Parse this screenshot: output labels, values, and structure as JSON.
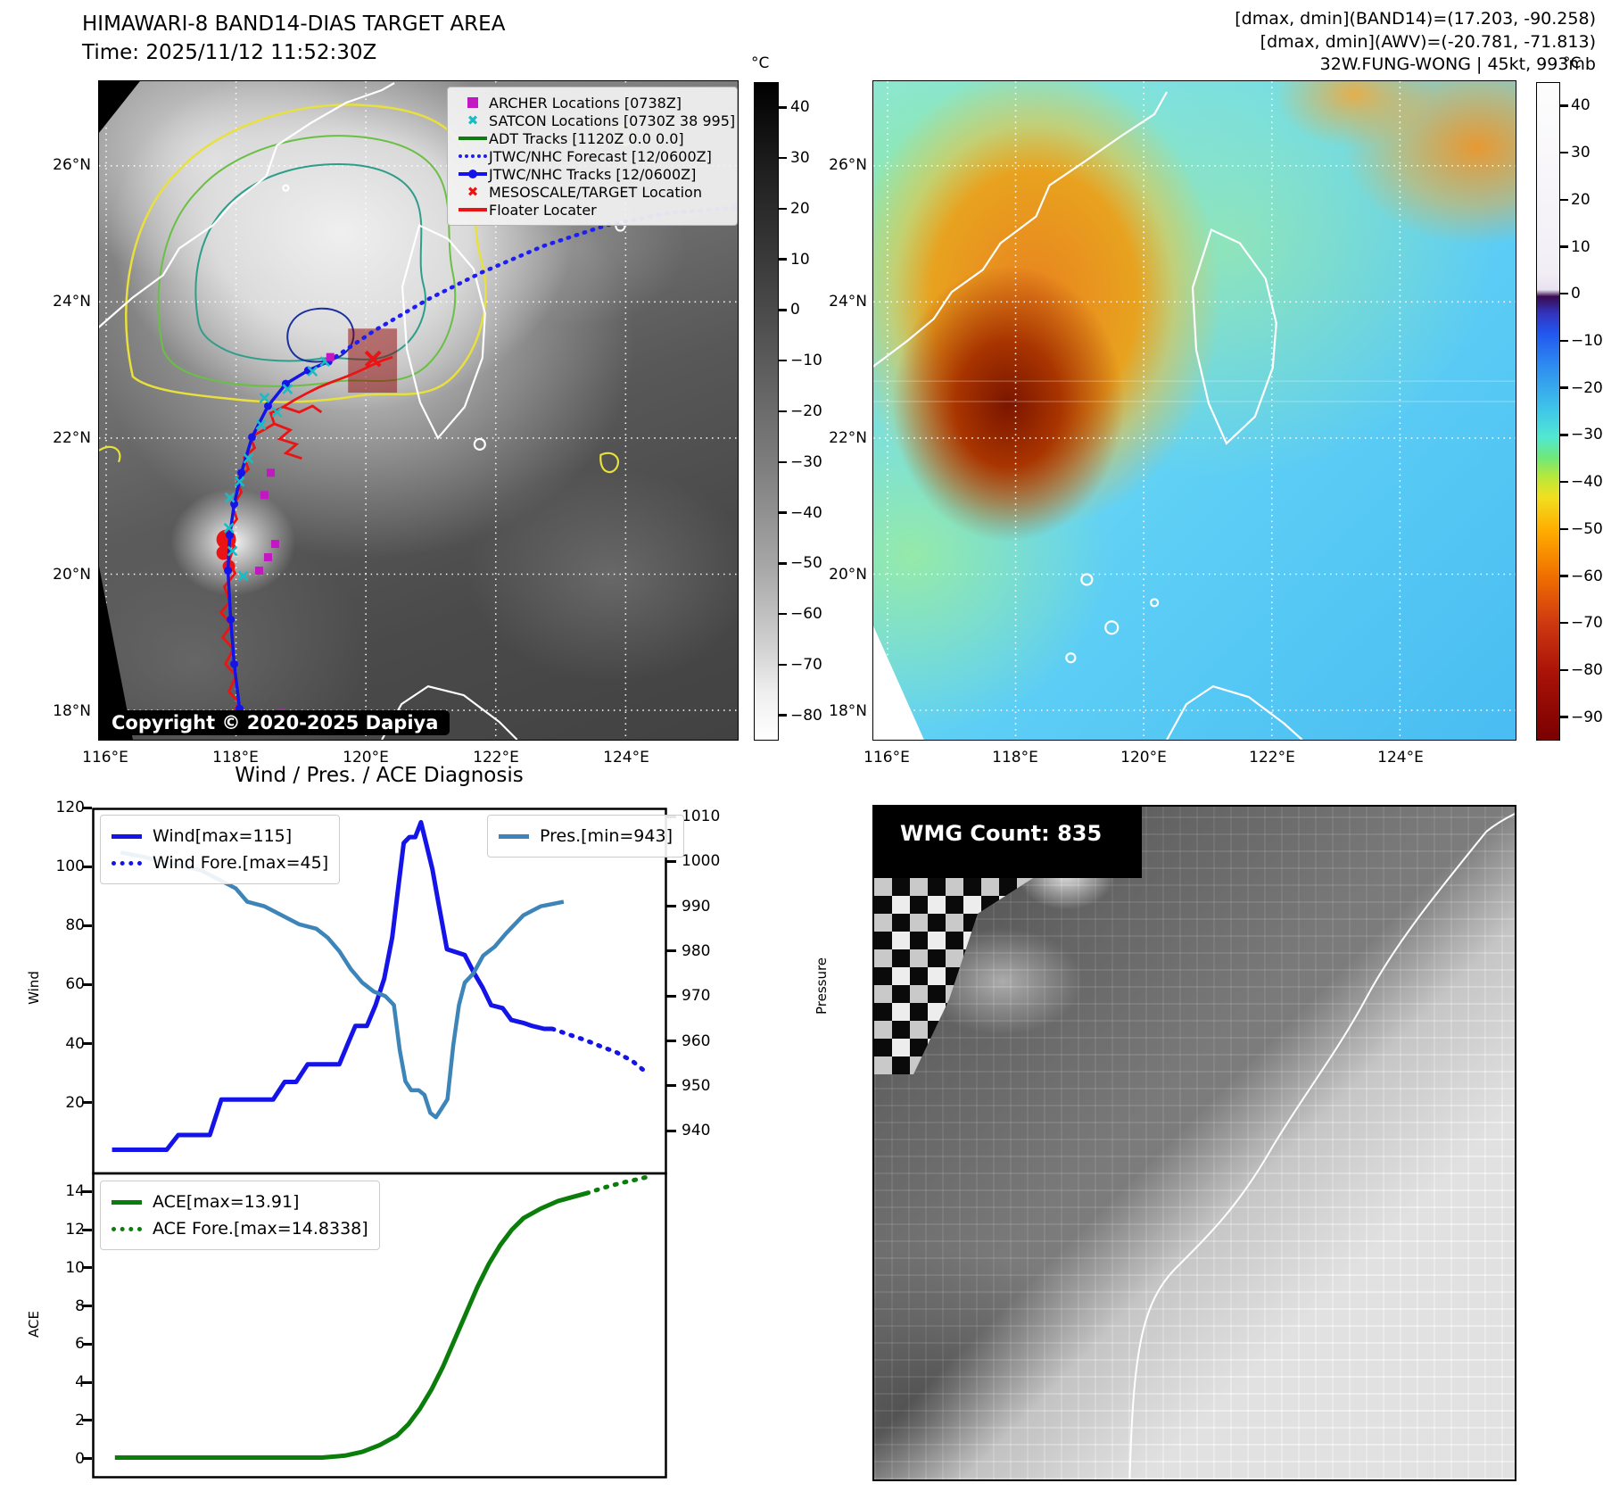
{
  "header": {
    "title": "HIMAWARI-8 BAND14-DIAS TARGET AREA",
    "time_line": "Time: 2025/11/12 11:52:30Z",
    "metrics_line1": "[dmax, dmin](BAND14)=(17.203, -90.258)",
    "metrics_line2": "[dmax, dmin](AWV)=(-20.781, -71.813)",
    "storm_line": "32W.FUNG-WONG | 45kt, 993mb"
  },
  "band14_map": {
    "lat_ticks": [
      "26°N",
      "24°N",
      "22°N",
      "20°N",
      "18°N"
    ],
    "lon_ticks": [
      "116°E",
      "118°E",
      "120°E",
      "122°E",
      "124°E"
    ],
    "legend": [
      {
        "label": "ARCHER Locations [0738Z]",
        "marker": "square",
        "color": "#c317c3"
      },
      {
        "label": "SATCON Locations [0730Z 38 995]",
        "marker": "x",
        "color": "#1abcc4"
      },
      {
        "label": "ADT Tracks [1120Z 0.0 0.0]",
        "marker": "line",
        "color": "#0e7d0e"
      },
      {
        "label": "JTWC/NHC Forecast [12/0600Z]",
        "marker": "dotted-line",
        "color": "#1e1ef0"
      },
      {
        "label": "JTWC/NHC Tracks [12/0600Z]",
        "marker": "line-dot",
        "color": "#1414e8"
      },
      {
        "label": "MESOSCALE/TARGET Location",
        "marker": "x",
        "color": "#ea1414"
      },
      {
        "label": "Floater Locater",
        "marker": "line",
        "color": "#ea1414"
      }
    ],
    "copyright": "Copyright © 2020-2025 Dapiya",
    "colorbar": {
      "unit": "°C",
      "ticks": [
        40,
        30,
        20,
        10,
        0,
        -10,
        -20,
        -30,
        -40,
        -50,
        -60,
        -70,
        -80
      ],
      "vmax": 45,
      "vmin": -85
    }
  },
  "awv_map": {
    "lat_ticks": [
      "26°N",
      "24°N",
      "22°N",
      "20°N",
      "18°N"
    ],
    "lon_ticks": [
      "116°E",
      "118°E",
      "120°E",
      "122°E",
      "124°E"
    ],
    "colorbar": {
      "unit": "°C",
      "ticks": [
        40,
        30,
        20,
        10,
        0,
        -10,
        -20,
        -30,
        -40,
        -50,
        -60,
        -70,
        -80,
        -90
      ],
      "vmax": 45,
      "vmin": -95
    }
  },
  "diagnosis": {
    "title": "Wind / Pres. / ACE Diagnosis",
    "wind_axis_label": "Wind",
    "pressure_axis_label": "Pressure",
    "ace_axis_label": "ACE",
    "wind_ticks": [
      120,
      100,
      80,
      60,
      40,
      20
    ],
    "pressure_ticks": [
      1010,
      1000,
      990,
      980,
      970,
      960,
      950,
      940
    ],
    "ace_ticks": [
      14,
      12,
      10,
      8,
      6,
      4,
      2,
      0
    ],
    "legend_wind": "Wind[max=115]",
    "legend_wind_fore": "Wind Fore.[max=45]",
    "legend_pres": "Pres.[min=943]",
    "legend_ace": "ACE[max=13.91]",
    "legend_ace_fore": "ACE Fore.[max=14.8338]"
  },
  "wmg_panel": {
    "count_label": "WMG Count: 835"
  },
  "chart_data": [
    {
      "type": "line",
      "title": "Wind / Pres. / ACE Diagnosis",
      "panel": "wind-pressure",
      "xlabel": "",
      "ylabel_left": "Wind",
      "ylabel_right": "Pressure",
      "ylim_wind": [
        -4,
        120
      ],
      "ylim_pressure": [
        930.5,
        1012
      ],
      "grid": false,
      "legend_position": "upper-left and upper-right",
      "series": [
        {
          "name": "Wind[max=115]",
          "style": "solid",
          "color": "#1414e8",
          "axis": "wind",
          "points": [
            [
              0.035,
              4
            ],
            [
              0.13,
              4
            ],
            [
              0.15,
              9
            ],
            [
              0.205,
              9
            ],
            [
              0.225,
              21
            ],
            [
              0.315,
              21
            ],
            [
              0.335,
              27
            ],
            [
              0.355,
              27
            ],
            [
              0.375,
              33
            ],
            [
              0.43,
              33
            ],
            [
              0.445,
              40
            ],
            [
              0.458,
              46
            ],
            [
              0.478,
              46
            ],
            [
              0.493,
              53
            ],
            [
              0.508,
              62
            ],
            [
              0.522,
              76
            ],
            [
              0.532,
              92
            ],
            [
              0.542,
              108
            ],
            [
              0.552,
              110
            ],
            [
              0.562,
              110
            ],
            [
              0.572,
              115
            ],
            [
              0.582,
              107
            ],
            [
              0.592,
              99
            ],
            [
              0.602,
              88
            ],
            [
              0.617,
              72
            ],
            [
              0.648,
              70
            ],
            [
              0.664,
              64
            ],
            [
              0.679,
              59
            ],
            [
              0.694,
              53
            ],
            [
              0.714,
              52
            ],
            [
              0.729,
              48
            ],
            [
              0.75,
              47
            ],
            [
              0.765,
              46
            ],
            [
              0.786,
              45
            ],
            [
              0.8,
              45
            ]
          ]
        },
        {
          "name": "Wind Fore.[max=45]",
          "style": "dotted",
          "color": "#1414e8",
          "axis": "wind",
          "points": [
            [
              0.8,
              45
            ],
            [
              0.83,
              43
            ],
            [
              0.86,
              41
            ],
            [
              0.885,
              39
            ],
            [
              0.912,
              37
            ],
            [
              0.94,
              34
            ],
            [
              0.965,
              30
            ]
          ]
        },
        {
          "name": "Pres.[min=943]",
          "style": "solid",
          "color": "#3d85b8",
          "axis": "pressure",
          "points": [
            [
              0.05,
              1002
            ],
            [
              0.09,
              1001
            ],
            [
              0.12,
              1000
            ],
            [
              0.16,
              999
            ],
            [
              0.19,
              998
            ],
            [
              0.22,
              996
            ],
            [
              0.25,
              994
            ],
            [
              0.27,
              991
            ],
            [
              0.3,
              990
            ],
            [
              0.33,
              988
            ],
            [
              0.36,
              986
            ],
            [
              0.39,
              985
            ],
            [
              0.41,
              983
            ],
            [
              0.43,
              980
            ],
            [
              0.45,
              976
            ],
            [
              0.47,
              973
            ],
            [
              0.49,
              971
            ],
            [
              0.51,
              970
            ],
            [
              0.525,
              968
            ],
            [
              0.535,
              958
            ],
            [
              0.545,
              951
            ],
            [
              0.555,
              949
            ],
            [
              0.568,
              949
            ],
            [
              0.578,
              948
            ],
            [
              0.588,
              944
            ],
            [
              0.598,
              943
            ],
            [
              0.608,
              945
            ],
            [
              0.618,
              947
            ],
            [
              0.628,
              959
            ],
            [
              0.638,
              968
            ],
            [
              0.648,
              973
            ],
            [
              0.663,
              975
            ],
            [
              0.68,
              979
            ],
            [
              0.7,
              981
            ],
            [
              0.72,
              984
            ],
            [
              0.75,
              988
            ],
            [
              0.78,
              990
            ],
            [
              0.82,
              991
            ]
          ]
        }
      ]
    },
    {
      "type": "line",
      "panel": "ace",
      "xlabel": "",
      "ylabel_left": "ACE",
      "ylim": [
        -1.05,
        14.95
      ],
      "grid": false,
      "legend_position": "upper-left",
      "series": [
        {
          "name": "ACE[max=13.91]",
          "style": "solid",
          "color": "#0b7d0b",
          "points": [
            [
              0.04,
              0.05
            ],
            [
              0.4,
              0.05
            ],
            [
              0.44,
              0.15
            ],
            [
              0.47,
              0.35
            ],
            [
              0.5,
              0.7
            ],
            [
              0.53,
              1.2
            ],
            [
              0.55,
              1.8
            ],
            [
              0.57,
              2.6
            ],
            [
              0.59,
              3.6
            ],
            [
              0.61,
              4.8
            ],
            [
              0.63,
              6.2
            ],
            [
              0.65,
              7.6
            ],
            [
              0.67,
              9.0
            ],
            [
              0.69,
              10.2
            ],
            [
              0.71,
              11.2
            ],
            [
              0.73,
              12.0
            ],
            [
              0.75,
              12.6
            ],
            [
              0.78,
              13.1
            ],
            [
              0.81,
              13.5
            ],
            [
              0.84,
              13.75
            ],
            [
              0.86,
              13.91
            ]
          ]
        },
        {
          "name": "ACE Fore.[max=14.8338]",
          "style": "dotted",
          "color": "#0b7d0b",
          "points": [
            [
              0.86,
              13.91
            ],
            [
              0.89,
              14.2
            ],
            [
              0.92,
              14.45
            ],
            [
              0.95,
              14.65
            ],
            [
              0.975,
              14.8338
            ]
          ]
        }
      ]
    }
  ]
}
